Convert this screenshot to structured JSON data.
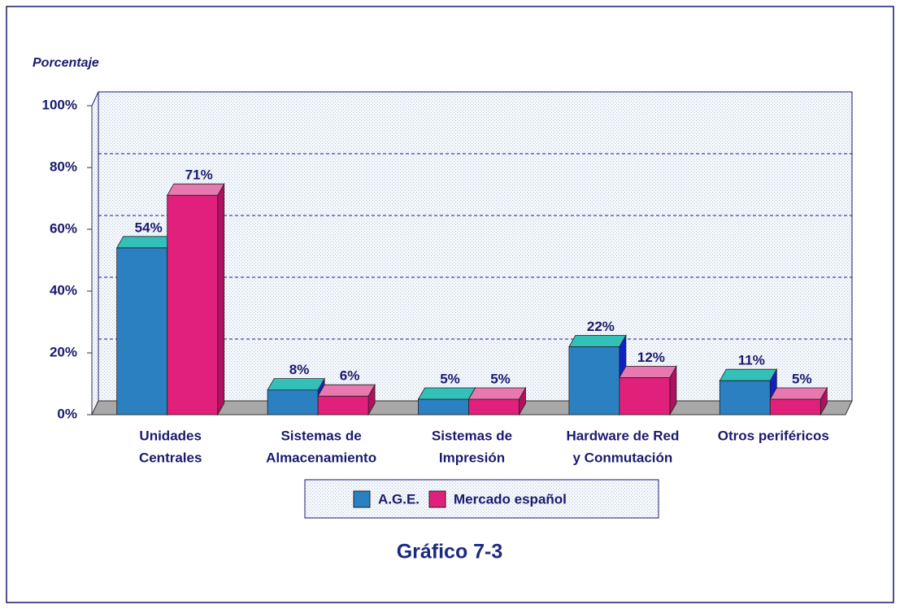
{
  "chart_data": {
    "type": "bar3d",
    "title": "Gráfico 7-3",
    "y_axis_label": "Porcentaje",
    "categories": [
      [
        "Unidades",
        "Centrales"
      ],
      [
        "Sistemas de",
        "Almacenamiento"
      ],
      [
        "Sistemas de",
        "Impresión"
      ],
      [
        "Hardware de Red",
        "y Conmutación"
      ],
      [
        "Otros periféricos"
      ]
    ],
    "series": [
      {
        "name": "A.G.E.",
        "color": "#2a80c0",
        "values": [
          54,
          8,
          5,
          22,
          11
        ],
        "value_labels": [
          "54%",
          "8%",
          "5%",
          "22%",
          "11%"
        ]
      },
      {
        "name": "Mercado español",
        "color": "#e0207a",
        "values": [
          71,
          6,
          5,
          12,
          5
        ],
        "value_labels": [
          "71%",
          "6%",
          "5%",
          "12%",
          "5%"
        ]
      }
    ],
    "ylim": [
      0,
      100
    ],
    "yticks": [
      {
        "value": 0,
        "label": "0%"
      },
      {
        "value": 20,
        "label": "20%"
      },
      {
        "value": 40,
        "label": "40%"
      },
      {
        "value": 60,
        "label": "60%"
      },
      {
        "value": 80,
        "label": "80%"
      },
      {
        "value": 100,
        "label": "100%"
      }
    ],
    "grid": true
  }
}
